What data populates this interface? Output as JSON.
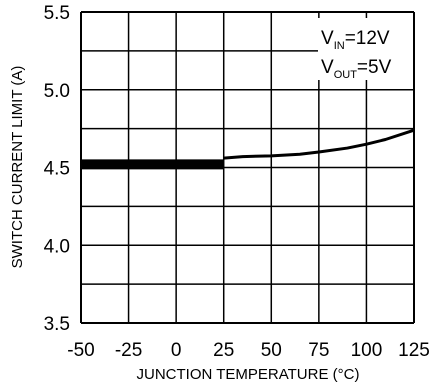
{
  "chart_data": {
    "type": "line",
    "title": "",
    "xlabel": "JUNCTION TEMPERATURE (°C)",
    "ylabel": "SWITCH CURRENT LIMIT (A)",
    "xlim": [
      -50,
      125
    ],
    "ylim": [
      3.5,
      5.5
    ],
    "grid": true,
    "x_ticks": [
      "-50",
      "-25",
      "0",
      "25",
      "50",
      "75",
      "100",
      "125"
    ],
    "y_ticks": [
      "5.5",
      "5.0",
      "4.5",
      "4.0",
      "3.5"
    ],
    "annotations": [
      {
        "text": "V",
        "sub": "IN",
        "value": "=12V"
      },
      {
        "text": "V",
        "sub": "OUT",
        "value": "=5V"
      }
    ],
    "series": [
      {
        "style": "thick-band",
        "x": [
          -50,
          25
        ],
        "y": [
          4.52,
          4.52
        ]
      },
      {
        "style": "line",
        "x": [
          25,
          35,
          50,
          65,
          75,
          90,
          100,
          110,
          125
        ],
        "y": [
          4.56,
          4.57,
          4.575,
          4.585,
          4.6,
          4.625,
          4.65,
          4.68,
          4.74
        ]
      }
    ]
  }
}
